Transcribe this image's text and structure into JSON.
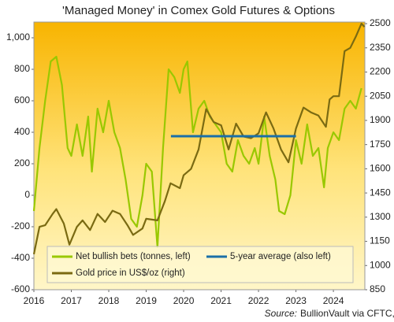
{
  "chart_data": {
    "type": "line",
    "title": "'Managed Money' in Comex Gold Futures & Options",
    "source_label": "Source:",
    "source": "BullionVault via CFTC, LBMA",
    "xlim": [
      2016,
      2024.84
    ],
    "xticks": [
      2016,
      2017,
      2018,
      2019,
      2020,
      2021,
      2022,
      2023,
      2024
    ],
    "ylim": [
      -600,
      1100
    ],
    "yticks": [
      -600,
      -400,
      -200,
      0,
      200,
      400,
      600,
      800,
      {
        "value": 1000,
        "label": "1,000"
      }
    ],
    "y2lim": [
      850,
      2510
    ],
    "y2ticks": [
      850,
      1000,
      1150,
      1300,
      1450,
      1600,
      1750,
      1900,
      2050,
      2200,
      2350,
      2500
    ],
    "series": [
      {
        "name": "Net bullish bets (tonnes, left)",
        "color": "#99c800",
        "x": [
          2016.0,
          2016.15,
          2016.3,
          2016.45,
          2016.6,
          2016.75,
          2016.9,
          2017.0,
          2017.15,
          2017.3,
          2017.45,
          2017.55,
          2017.7,
          2017.85,
          2018.0,
          2018.15,
          2018.3,
          2018.45,
          2018.6,
          2018.75,
          2018.9,
          2019.0,
          2019.15,
          2019.3,
          2019.45,
          2019.6,
          2019.75,
          2019.9,
          2020.0,
          2020.1,
          2020.25,
          2020.4,
          2020.55,
          2020.7,
          2020.85,
          2021.0,
          2021.15,
          2021.3,
          2021.45,
          2021.6,
          2021.75,
          2021.9,
          2022.0,
          2022.15,
          2022.3,
          2022.45,
          2022.55,
          2022.7,
          2022.85,
          2023.0,
          2023.15,
          2023.3,
          2023.45,
          2023.6,
          2023.75,
          2023.85,
          2024.0,
          2024.15,
          2024.3,
          2024.45,
          2024.6,
          2024.75
        ],
        "values": [
          -100,
          300,
          600,
          850,
          880,
          700,
          300,
          250,
          450,
          250,
          500,
          150,
          550,
          400,
          600,
          400,
          300,
          100,
          -150,
          -200,
          0,
          200,
          150,
          -330,
          300,
          800,
          750,
          650,
          800,
          850,
          400,
          550,
          600,
          500,
          450,
          400,
          200,
          150,
          350,
          250,
          200,
          300,
          200,
          500,
          250,
          100,
          -100,
          -120,
          0,
          350,
          200,
          450,
          250,
          300,
          50,
          300,
          400,
          350,
          550,
          600,
          550,
          680
        ]
      },
      {
        "name": "5-year average (also left)",
        "color": "#1a6fa8",
        "x": [
          2019.66,
          2023.0
        ],
        "values": [
          375,
          375
        ]
      },
      {
        "name": "Gold price in US$/oz (right)",
        "color": "#7a6a12",
        "axis": "y2",
        "x": [
          2016.0,
          2016.15,
          2016.3,
          2016.5,
          2016.6,
          2016.8,
          2016.95,
          2017.15,
          2017.3,
          2017.5,
          2017.7,
          2017.9,
          2018.1,
          2018.3,
          2018.5,
          2018.65,
          2018.9,
          2019.0,
          2019.3,
          2019.5,
          2019.65,
          2019.9,
          2020.0,
          2020.2,
          2020.4,
          2020.6,
          2020.8,
          2021.0,
          2021.2,
          2021.4,
          2021.6,
          2021.8,
          2022.0,
          2022.2,
          2022.4,
          2022.6,
          2022.8,
          2023.0,
          2023.2,
          2023.4,
          2023.6,
          2023.8,
          2023.9,
          2024.0,
          2024.15,
          2024.3,
          2024.45,
          2024.6,
          2024.75,
          2024.83
        ],
        "values": [
          1070,
          1240,
          1250,
          1320,
          1350,
          1260,
          1130,
          1240,
          1280,
          1220,
          1320,
          1270,
          1340,
          1320,
          1250,
          1190,
          1230,
          1290,
          1280,
          1400,
          1510,
          1480,
          1560,
          1600,
          1720,
          1970,
          1890,
          1870,
          1720,
          1880,
          1800,
          1790,
          1820,
          1950,
          1850,
          1720,
          1640,
          1850,
          1980,
          1950,
          1930,
          1860,
          2030,
          2050,
          2050,
          2330,
          2350,
          2420,
          2500,
          2480
        ]
      }
    ]
  }
}
